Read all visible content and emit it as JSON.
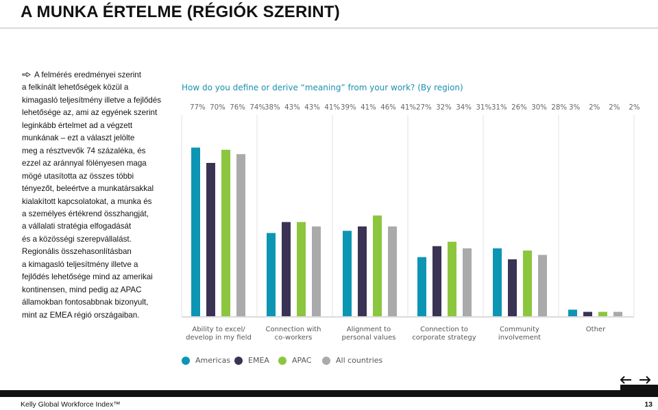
{
  "page": {
    "title": "A MUNKA ÉRTELME (RÉGIÓK SZERINT)",
    "footer_left": "Kelly Global Workforce Index™",
    "page_number": "13"
  },
  "body_text": [
    "A felmérés eredményei szerint",
    "a felkínált lehetőségek közül a",
    "kimagasló teljesítmény illetve a fejlődés",
    "lehetősége az, ami az egyének szerint",
    "leginkább értelmet ad a végzett",
    "munkának – ezt a választ jelölte",
    "meg a résztvevők 74 százaléka, és",
    "ezzel az aránnyal fölényesen maga",
    "mögé utasította az összes többi",
    "tényezőt, beleértve a munkatársakkal",
    "kialakított kapcsolatokat, a munka és",
    "a személyes értékrend összhangját,",
    "a vállalati stratégia elfogadását",
    "és a közösségi szerepvállalást.",
    "Regionális összehasonlításban",
    "a kimagasló teljesítmény illetve a",
    "fejlődés lehetősége mind az amerikai",
    "kontinensen, mind pedig az APAC",
    "államokban fontosabbnak bizonyult,",
    "mint az EMEA régió országaiban."
  ],
  "chart_data": {
    "type": "bar",
    "title": "How do you define or derive “meaning” from your work? (By region)",
    "categories": [
      [
        "Ability to excel/",
        "develop in my field"
      ],
      [
        "Connection with",
        "co-workers"
      ],
      [
        "Alignment to",
        "personal values"
      ],
      [
        "Connection to",
        "corporate strategy"
      ],
      [
        "Community",
        "involvement"
      ],
      [
        "Other"
      ]
    ],
    "series": [
      {
        "name": "Americas",
        "color": "#0d95b4",
        "values": [
          77,
          38,
          39,
          27,
          31,
          3
        ]
      },
      {
        "name": "EMEA",
        "color": "#3a3354",
        "values": [
          70,
          43,
          41,
          32,
          26,
          2
        ]
      },
      {
        "name": "APAC",
        "color": "#8cc63f",
        "values": [
          76,
          43,
          46,
          34,
          30,
          2
        ]
      },
      {
        "name": "All countries",
        "color": "#aaaaab",
        "values": [
          74,
          41,
          41,
          31,
          28,
          2
        ]
      }
    ],
    "percent_labels": [
      "77%  70%  76%  74%",
      "38%  43%  43%  41%",
      "39%  41%  46%  41%",
      "27%  32%  34%  31%",
      "31%  26%  30%  28%",
      "3%    2%    2%    2%"
    ],
    "ylim": [
      0,
      100
    ],
    "grid": false,
    "legend_position": "bottom"
  }
}
